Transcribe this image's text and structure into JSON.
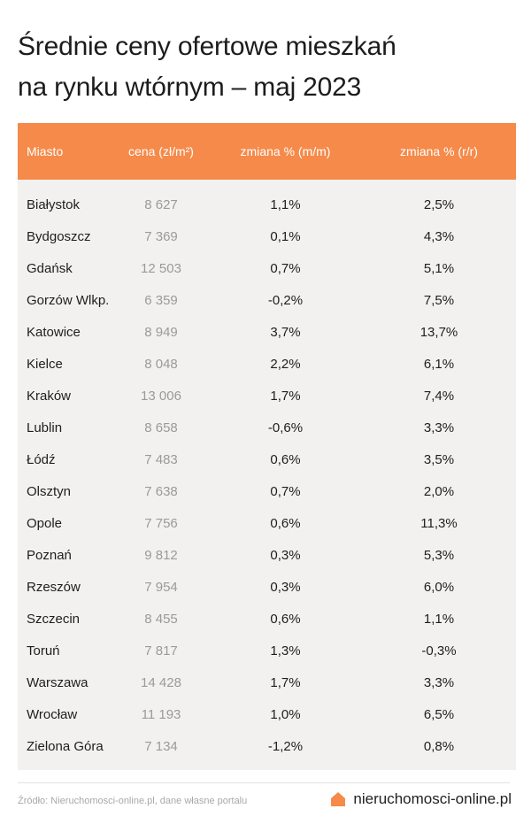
{
  "title": {
    "line1": "Średnie ceny ofertowe mieszkań",
    "line2": "na rynku wtórnym – maj 2023"
  },
  "table": {
    "headers": {
      "city": "Miasto",
      "price": "cena (zł/m²)",
      "change_mm": "zmiana % (m/m)",
      "change_rr": "zmiana % (r/r)"
    },
    "rows": [
      {
        "city": "Białystok",
        "price": "8 627",
        "mm": "1,1%",
        "rr": "2,5%"
      },
      {
        "city": "Bydgoszcz",
        "price": "7 369",
        "mm": "0,1%",
        "rr": "4,3%"
      },
      {
        "city": "Gdańsk",
        "price": "12 503",
        "mm": "0,7%",
        "rr": "5,1%"
      },
      {
        "city": "Gorzów Wlkp.",
        "price": "6 359",
        "mm": "-0,2%",
        "rr": "7,5%"
      },
      {
        "city": "Katowice",
        "price": "8 949",
        "mm": "3,7%",
        "rr": "13,7%"
      },
      {
        "city": "Kielce",
        "price": "8 048",
        "mm": "2,2%",
        "rr": "6,1%"
      },
      {
        "city": "Kraków",
        "price": "13 006",
        "mm": "1,7%",
        "rr": "7,4%"
      },
      {
        "city": "Lublin",
        "price": "8 658",
        "mm": "-0,6%",
        "rr": "3,3%"
      },
      {
        "city": "Łódź",
        "price": "7 483",
        "mm": "0,6%",
        "rr": "3,5%"
      },
      {
        "city": "Olsztyn",
        "price": "7 638",
        "mm": "0,7%",
        "rr": "2,0%"
      },
      {
        "city": "Opole",
        "price": "7 756",
        "mm": "0,6%",
        "rr": "11,3%"
      },
      {
        "city": "Poznań",
        "price": "9 812",
        "mm": "0,3%",
        "rr": "5,3%"
      },
      {
        "city": "Rzeszów",
        "price": "7 954",
        "mm": "0,3%",
        "rr": "6,0%"
      },
      {
        "city": "Szczecin",
        "price": "8 455",
        "mm": "0,6%",
        "rr": "1,1%"
      },
      {
        "city": "Toruń",
        "price": "7 817",
        "mm": "1,3%",
        "rr": "-0,3%"
      },
      {
        "city": "Warszawa",
        "price": "14 428",
        "mm": "1,7%",
        "rr": "3,3%"
      },
      {
        "city": "Wrocław",
        "price": "11 193",
        "mm": "1,0%",
        "rr": "6,5%"
      },
      {
        "city": "Zielona Góra",
        "price": "7 134",
        "mm": "-1,2%",
        "rr": "0,8%"
      }
    ]
  },
  "footer": {
    "source": "Źródło: Nieruchomosci-online.pl, dane własne portalu",
    "brand": "nieruchomosci-online.pl",
    "brand_icon": "house-icon",
    "accent_color": "#f58a4a"
  }
}
